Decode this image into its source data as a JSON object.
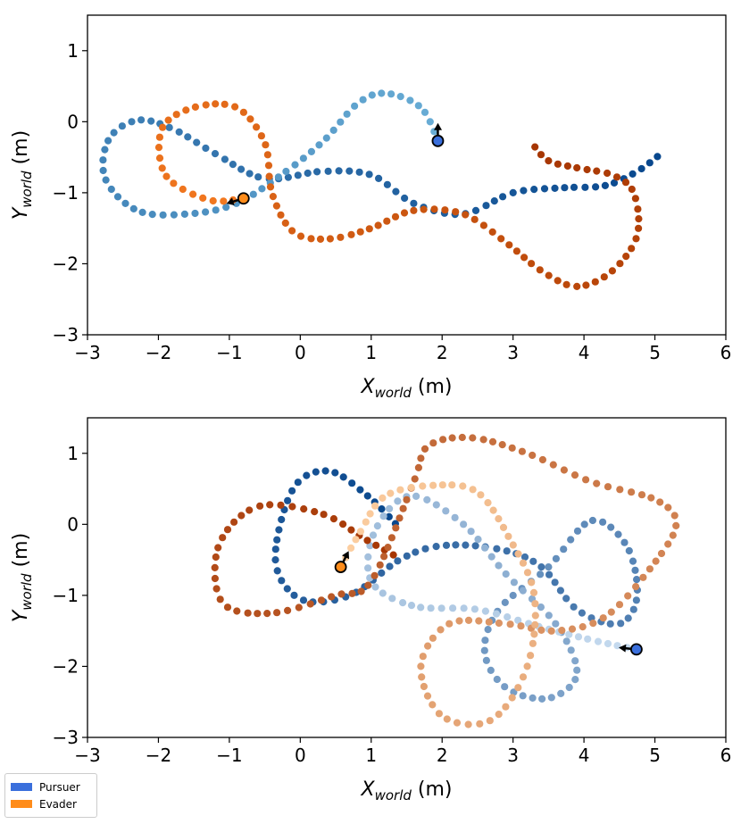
{
  "legend": {
    "pursuer_label": "Pursuer",
    "evader_label": "Evader",
    "pursuer_color": "#3a6fdc",
    "evader_color": "#ff8c1a"
  },
  "axes_text": {
    "x_label_main": "X",
    "x_label_sub": "world",
    "x_label_unit": " (m)",
    "y_label_main": "Y",
    "y_label_sub": "world",
    "y_label_unit": " (m)"
  },
  "chart_data": [
    {
      "type": "scatter",
      "title": "",
      "xlabel": "X_world (m)",
      "ylabel": "Y_world (m)",
      "xlim": [
        -3,
        6
      ],
      "ylim": [
        -3,
        1.5
      ],
      "xticks": [
        "−3",
        "−2",
        "−1",
        "0",
        "1",
        "2",
        "3",
        "4",
        "5",
        "6"
      ],
      "yticks": [
        "−3",
        "−2",
        "−1",
        "0",
        "1"
      ],
      "series": [
        {
          "name": "Pursuer",
          "role": "pursuer",
          "color_light": "#6aaed6",
          "color_dark": "#08478d",
          "start": [
            1.94,
            -0.27
          ],
          "heading": [
            0,
            1
          ],
          "waypoints": [
            [
              1.94,
              -0.27
            ],
            [
              1.7,
              0.2
            ],
            [
              1.2,
              0.4
            ],
            [
              0.8,
              0.25
            ],
            [
              0.35,
              -0.25
            ],
            [
              -0.2,
              -0.7
            ],
            [
              -0.9,
              -1.15
            ],
            [
              -1.6,
              -1.3
            ],
            [
              -2.3,
              -1.25
            ],
            [
              -2.75,
              -0.8
            ],
            [
              -2.7,
              -0.25
            ],
            [
              -2.3,
              0.02
            ],
            [
              -1.8,
              -0.1
            ],
            [
              -1.2,
              -0.45
            ],
            [
              -0.5,
              -0.8
            ],
            [
              0.3,
              -0.7
            ],
            [
              1.0,
              -0.75
            ],
            [
              1.6,
              -1.15
            ],
            [
              2.3,
              -1.3
            ],
            [
              3.0,
              -1.0
            ],
            [
              3.7,
              -0.93
            ],
            [
              4.3,
              -0.9
            ],
            [
              4.75,
              -0.7
            ],
            [
              5.05,
              -0.48
            ]
          ]
        },
        {
          "name": "Evader",
          "role": "evader",
          "color_light": "#f47920",
          "color_dark": "#a63603",
          "start": [
            -0.8,
            -1.08
          ],
          "heading": [
            -1,
            -0.3
          ],
          "waypoints": [
            [
              -0.8,
              -1.08
            ],
            [
              -1.3,
              -1.1
            ],
            [
              -1.9,
              -0.75
            ],
            [
              -1.95,
              -0.1
            ],
            [
              -1.5,
              0.2
            ],
            [
              -0.9,
              0.2
            ],
            [
              -0.5,
              -0.3
            ],
            [
              -0.4,
              -1.0
            ],
            [
              -0.1,
              -1.55
            ],
            [
              0.4,
              -1.65
            ],
            [
              1.0,
              -1.5
            ],
            [
              1.6,
              -1.25
            ],
            [
              2.3,
              -1.3
            ],
            [
              2.9,
              -1.7
            ],
            [
              3.4,
              -2.1
            ],
            [
              3.9,
              -2.32
            ],
            [
              4.4,
              -2.1
            ],
            [
              4.75,
              -1.6
            ],
            [
              4.7,
              -1.0
            ],
            [
              4.4,
              -0.75
            ],
            [
              3.9,
              -0.65
            ],
            [
              3.5,
              -0.55
            ],
            [
              3.28,
              -0.32
            ]
          ]
        }
      ]
    },
    {
      "type": "scatter",
      "title": "",
      "xlabel": "X_world (m)",
      "ylabel": "Y_world (m)",
      "xlim": [
        -3,
        6
      ],
      "ylim": [
        -3,
        1.5
      ],
      "xticks": [
        "−3",
        "−2",
        "−1",
        "0",
        "1",
        "2",
        "3",
        "4",
        "5",
        "6"
      ],
      "yticks": [
        "−3",
        "−2",
        "−1",
        "0",
        "1"
      ],
      "series": [
        {
          "name": "Pursuer",
          "role": "pursuer",
          "color_light": "#c6dbef",
          "color_dark": "#08478d",
          "start": [
            4.74,
            -1.76
          ],
          "heading": [
            -1,
            0.1
          ],
          "waypoints": [
            [
              4.74,
              -1.76
            ],
            [
              4.2,
              -1.65
            ],
            [
              3.4,
              -1.45
            ],
            [
              2.5,
              -1.2
            ],
            [
              1.6,
              -1.15
            ],
            [
              1.0,
              -0.8
            ],
            [
              1.05,
              -0.1
            ],
            [
              1.55,
              0.4
            ],
            [
              2.3,
              0.0
            ],
            [
              2.9,
              -0.7
            ],
            [
              3.6,
              -1.4
            ],
            [
              3.9,
              -2.1
            ],
            [
              3.5,
              -2.45
            ],
            [
              2.9,
              -2.3
            ],
            [
              2.6,
              -1.8
            ],
            [
              2.8,
              -1.2
            ],
            [
              3.5,
              -0.6
            ],
            [
              4.1,
              0.05
            ],
            [
              4.6,
              -0.3
            ],
            [
              4.75,
              -1.0
            ],
            [
              4.5,
              -1.4
            ],
            [
              3.9,
              -1.2
            ],
            [
              3.4,
              -0.6
            ],
            [
              2.8,
              -0.35
            ],
            [
              2.0,
              -0.3
            ],
            [
              1.4,
              -0.5
            ],
            [
              0.7,
              -1.0
            ],
            [
              0.0,
              -1.05
            ],
            [
              -0.35,
              -0.5
            ],
            [
              -0.1,
              0.5
            ],
            [
              0.4,
              0.75
            ],
            [
              0.95,
              0.4
            ],
            [
              1.35,
              0.0
            ]
          ]
        },
        {
          "name": "Evader",
          "role": "evader",
          "color_light": "#fdd0a2",
          "color_dark": "#a63603",
          "start": [
            0.57,
            -0.6
          ],
          "heading": [
            0.5,
            1
          ],
          "waypoints": [
            [
              0.57,
              -0.6
            ],
            [
              0.85,
              -0.1
            ],
            [
              1.2,
              0.4
            ],
            [
              1.9,
              0.55
            ],
            [
              2.5,
              0.45
            ],
            [
              2.95,
              -0.2
            ],
            [
              3.3,
              -1.0
            ],
            [
              3.2,
              -2.0
            ],
            [
              2.7,
              -2.75
            ],
            [
              2.0,
              -2.7
            ],
            [
              1.7,
              -2.0
            ],
            [
              2.1,
              -1.4
            ],
            [
              2.9,
              -1.4
            ],
            [
              3.6,
              -1.5
            ],
            [
              4.3,
              -1.3
            ],
            [
              4.95,
              -0.6
            ],
            [
              5.3,
              0.0
            ],
            [
              5.0,
              0.35
            ],
            [
              4.1,
              0.6
            ],
            [
              3.2,
              1.0
            ],
            [
              2.4,
              1.22
            ],
            [
              1.8,
              1.1
            ],
            [
              1.6,
              0.6
            ],
            [
              1.0,
              -0.8
            ],
            [
              0.5,
              -1.0
            ],
            [
              -0.4,
              -1.25
            ],
            [
              -1.1,
              -1.1
            ],
            [
              -1.15,
              -0.3
            ],
            [
              -0.6,
              0.25
            ],
            [
              0.3,
              0.15
            ],
            [
              0.9,
              -0.2
            ],
            [
              1.4,
              -0.48
            ]
          ]
        }
      ]
    }
  ]
}
